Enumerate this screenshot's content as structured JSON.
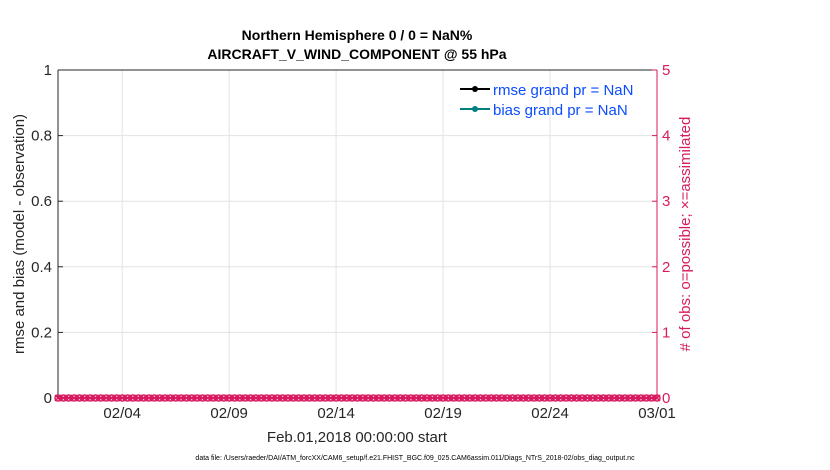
{
  "chart_data": {
    "type": "line",
    "title": [
      "Northern Hemisphere 0 / 0 = NaN%",
      "AIRCRAFT_V_WIND_COMPONENT @ 55 hPa"
    ],
    "xlabel": "Feb.01,2018 00:00:00 start",
    "ylabel_left": "rmse and bias (model - observation)",
    "ylabel_right": "# of obs: o=possible; ×=assimilated",
    "xlim": [
      "2018-02-01",
      "2018-03-01"
    ],
    "ylim_left": [
      0,
      1
    ],
    "ylim_right": [
      0,
      5
    ],
    "xticks": [
      "02/04",
      "02/09",
      "02/14",
      "02/19",
      "02/24",
      "03/01"
    ],
    "xtick_days": [
      3,
      8,
      13,
      18,
      23,
      28
    ],
    "yticks_left": [
      "0",
      "0.2",
      "0.4",
      "0.6",
      "0.8",
      "1"
    ],
    "yticks_right": [
      "0",
      "1",
      "2",
      "3",
      "4",
      "5"
    ],
    "grid": true,
    "legend_position": "top-right",
    "series": [
      {
        "name": "rmse grand pr = NaN",
        "color": "#000000",
        "values": []
      },
      {
        "name": "bias grand pr = NaN",
        "color": "#008080",
        "values": []
      },
      {
        "name": "obs possible",
        "color": "#d81b60",
        "marker": "o",
        "interval_hours": 6,
        "value": 0
      },
      {
        "name": "obs assimilated",
        "color": "#d81b60",
        "marker": "x",
        "interval_hours": 6,
        "value": 0
      }
    ],
    "right_axis_color": "#d81b60",
    "legend_text_color": "#0b4dff"
  },
  "footer": "data file: /Users/raeder/DAI/ATM_forcXX/CAM6_setup/f.e21.FHIST_BGC.f09_025.CAM6assim.011/Diags_NTrS_2018-02/obs_diag_output.nc"
}
